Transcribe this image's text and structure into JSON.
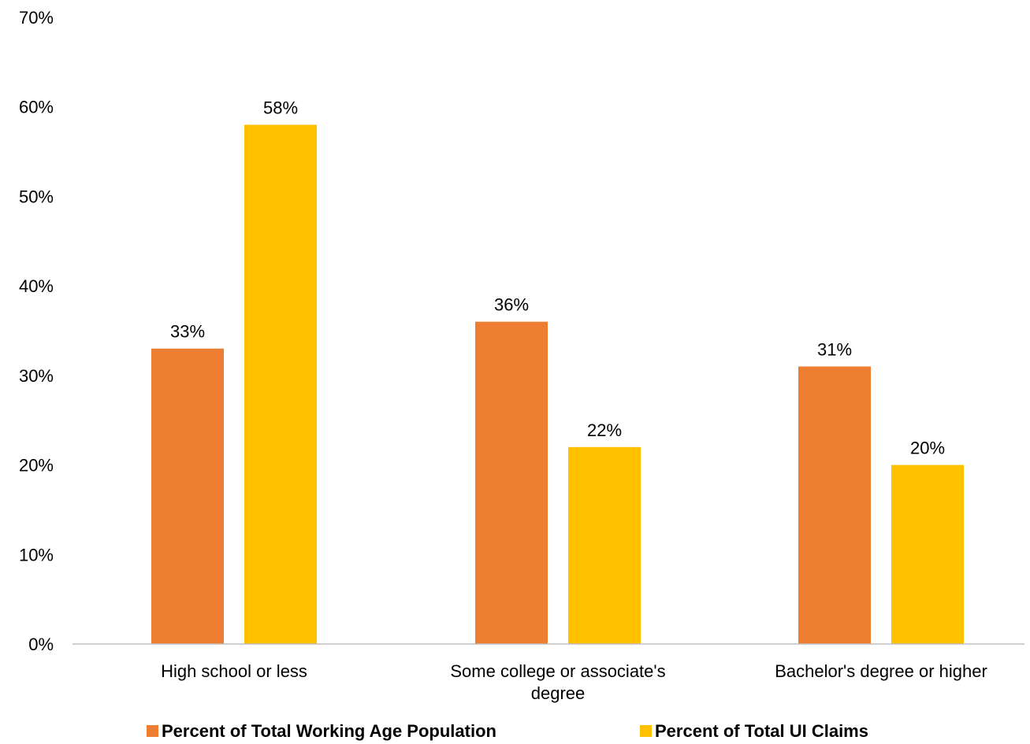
{
  "chart_data": {
    "type": "bar",
    "title": "",
    "xlabel": "",
    "ylabel": "",
    "ylim": [
      0,
      70
    ],
    "y_ticks": [
      0,
      10,
      20,
      30,
      40,
      50,
      60,
      70
    ],
    "y_tick_format": "percent",
    "grid": false,
    "legend_position": "bottom",
    "categories": [
      [
        "High school or less"
      ],
      [
        "Some college or associate's",
        "degree"
      ],
      [
        "Bachelor's degree or higher"
      ]
    ],
    "series": [
      {
        "name": "Percent of Total Working Age Population",
        "color": "#ED7D31",
        "values": [
          33,
          36,
          31
        ],
        "labels": [
          "33%",
          "36%",
          "31%"
        ]
      },
      {
        "name": "Percent of Total UI Claims",
        "color": "#FFC000",
        "values": [
          58,
          22,
          20
        ],
        "labels": [
          "58%",
          "22%",
          "20%"
        ]
      }
    ],
    "axis_color": "#BFBFBF"
  }
}
